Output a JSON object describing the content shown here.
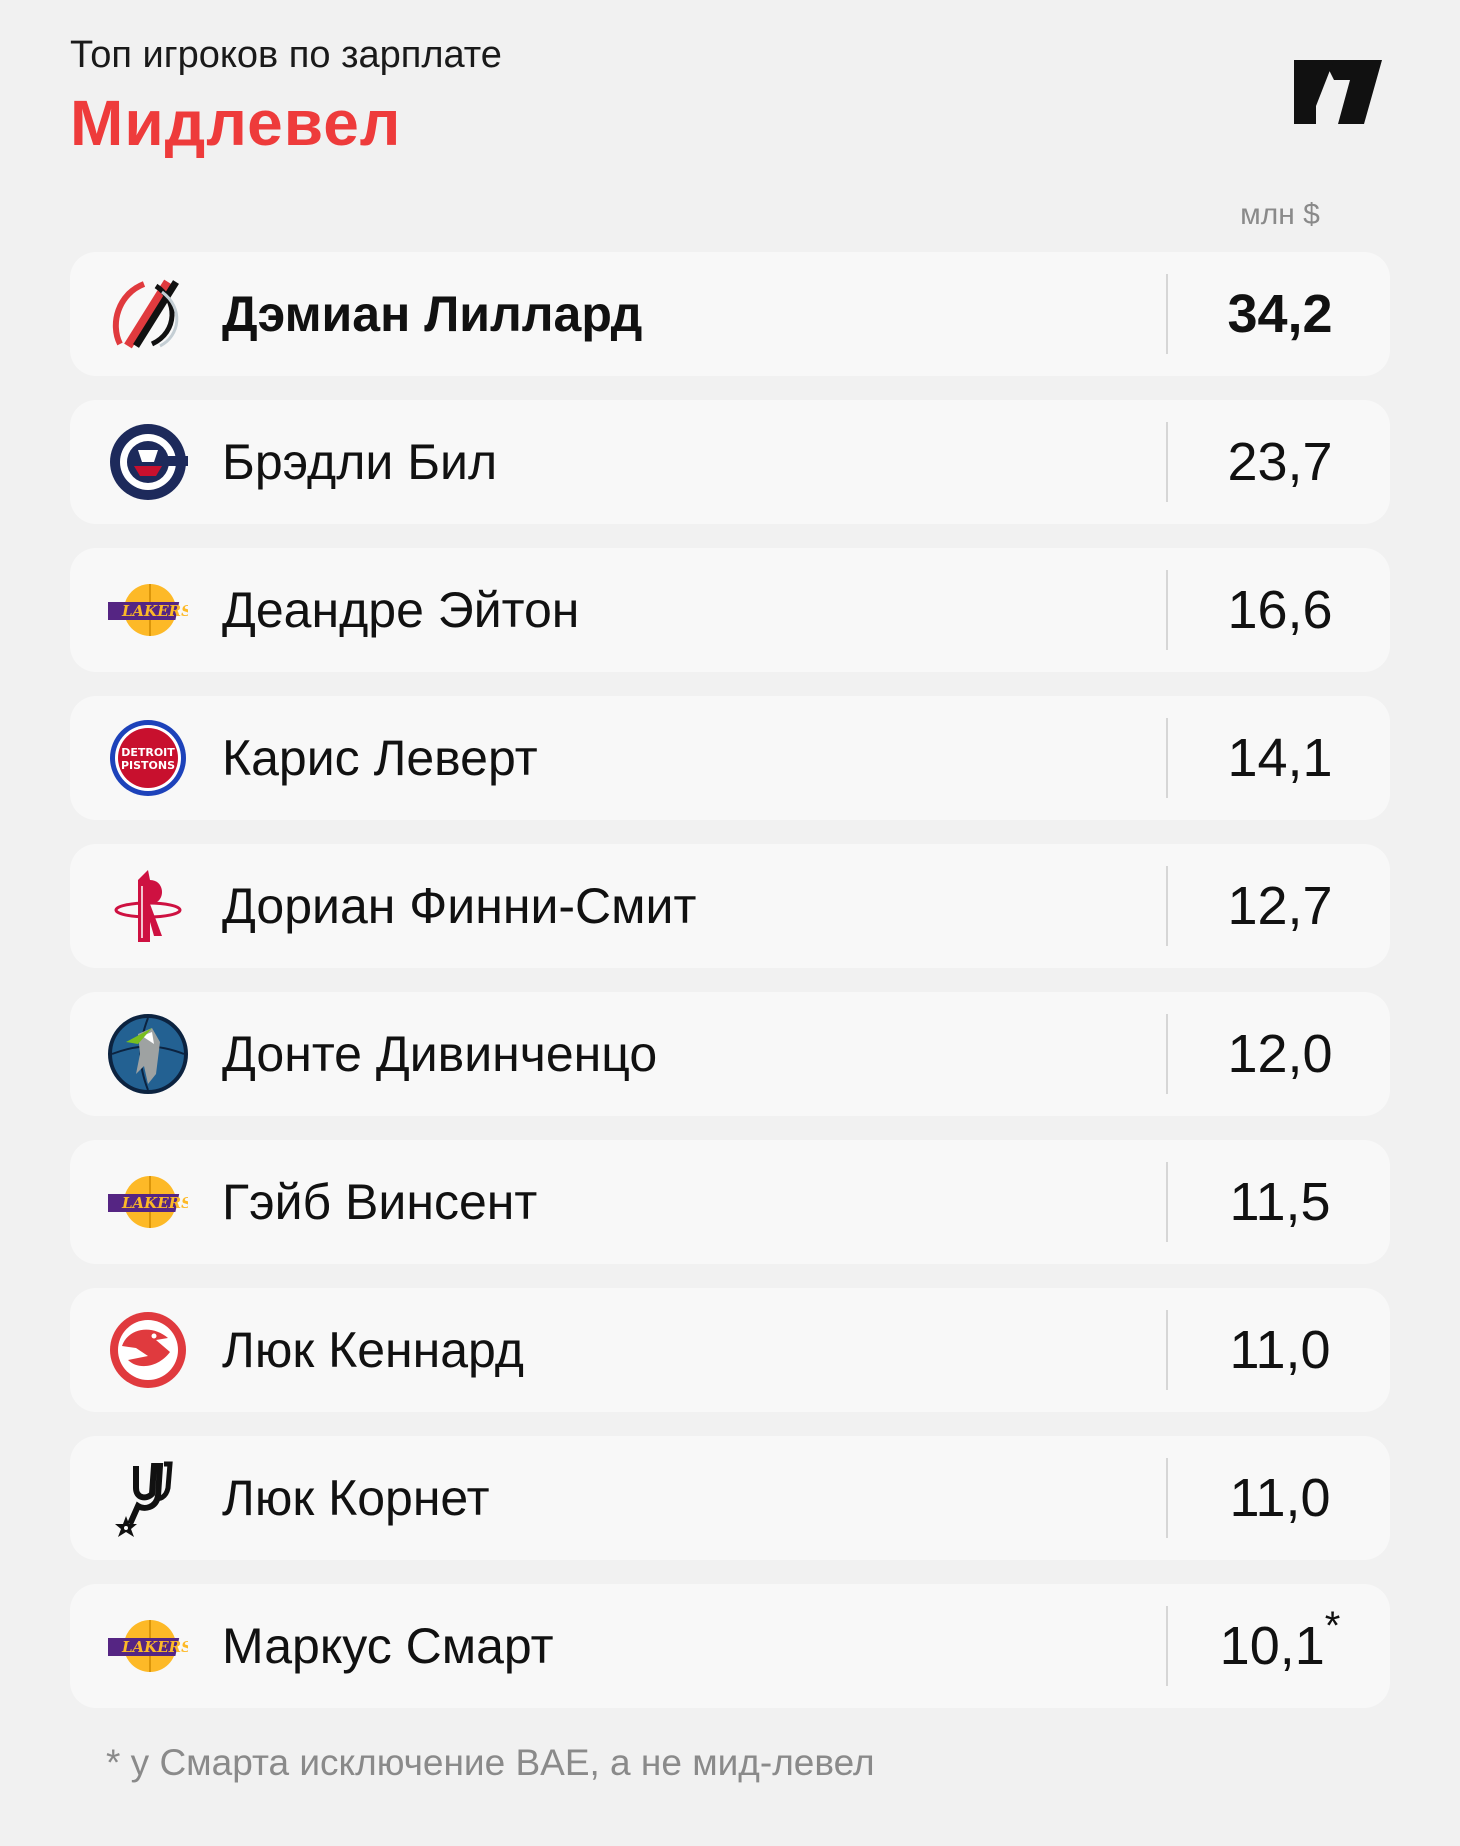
{
  "header": {
    "subtitle": "Топ игроков по зарплате",
    "title": "Мидлевел",
    "unit": "млн $",
    "brand_icon": "brand-logo-icon"
  },
  "colors": {
    "accent": "#ee3b3b",
    "background": "#f1f1f1",
    "row_background": "#f8f8f8",
    "muted_text": "#8a8a8a"
  },
  "rows": [
    {
      "name": "Дэмиан Лиллард",
      "value": "34,2",
      "mark": "",
      "team_icon": "blazers-logo-icon"
    },
    {
      "name": "Брэдли Бил",
      "value": "23,7",
      "mark": "",
      "team_icon": "clippers-logo-icon"
    },
    {
      "name": "Деандре Эйтон",
      "value": "16,6",
      "mark": "",
      "team_icon": "lakers-logo-icon"
    },
    {
      "name": "Карис Леверт",
      "value": "14,1",
      "mark": "",
      "team_icon": "pistons-logo-icon"
    },
    {
      "name": "Дориан Финни-Смит",
      "value": "12,7",
      "mark": "",
      "team_icon": "rockets-logo-icon"
    },
    {
      "name": "Донте Дивинченцо",
      "value": "12,0",
      "mark": "",
      "team_icon": "timberwolves-logo-icon"
    },
    {
      "name": "Гэйб Винсент",
      "value": "11,5",
      "mark": "",
      "team_icon": "lakers-logo-icon"
    },
    {
      "name": "Люк Кеннард",
      "value": "11,0",
      "mark": "",
      "team_icon": "hawks-logo-icon"
    },
    {
      "name": "Люк Корнет",
      "value": "11,0",
      "mark": "",
      "team_icon": "spurs-logo-icon"
    },
    {
      "name": "Маркус Смарт",
      "value": "10,1",
      "mark": "*",
      "team_icon": "lakers-logo-icon"
    }
  ],
  "footnote": "* у Смарта исключение BAE, а не мид-левел"
}
